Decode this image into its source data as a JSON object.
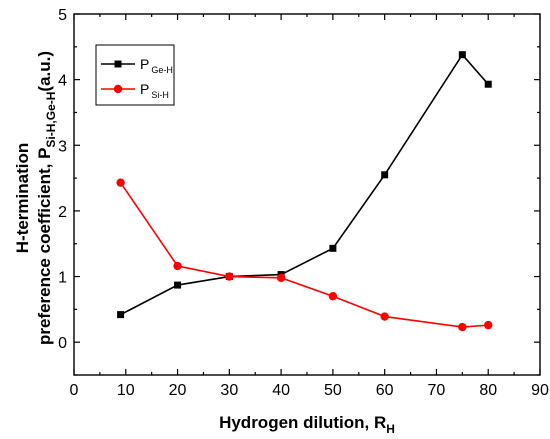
{
  "chart_data": {
    "type": "line",
    "title": "",
    "xlabel": {
      "main": "Hydrogen dilution, R",
      "sub": "H"
    },
    "ylabel": {
      "line1": "H-termination",
      "line2_main": "preference coefficient, P",
      "line2_sub": "Si-H,Ge-H",
      "line2_suffix": "(a.u.)"
    },
    "xlim": [
      0,
      90
    ],
    "ylim": [
      -0.5,
      5
    ],
    "xticks": [
      0,
      10,
      20,
      30,
      40,
      50,
      60,
      70,
      80,
      90
    ],
    "yticks": [
      0,
      1,
      2,
      3,
      4,
      5
    ],
    "grid": false,
    "legend_position": "top-left",
    "series": [
      {
        "name": "P",
        "name_sub": "Ge-H",
        "color": "#000000",
        "marker": "square",
        "x": [
          9,
          20,
          30,
          40,
          50,
          60,
          75,
          80
        ],
        "y": [
          0.42,
          0.87,
          1.0,
          1.03,
          1.43,
          2.55,
          4.38,
          3.93
        ]
      },
      {
        "name": "P",
        "name_sub": "Si-H",
        "color": "#ff0000",
        "marker": "circle",
        "x": [
          9,
          20,
          30,
          40,
          50,
          60,
          75,
          80
        ],
        "y": [
          2.43,
          1.16,
          1.0,
          0.98,
          0.7,
          0.39,
          0.23,
          0.26
        ]
      }
    ]
  }
}
